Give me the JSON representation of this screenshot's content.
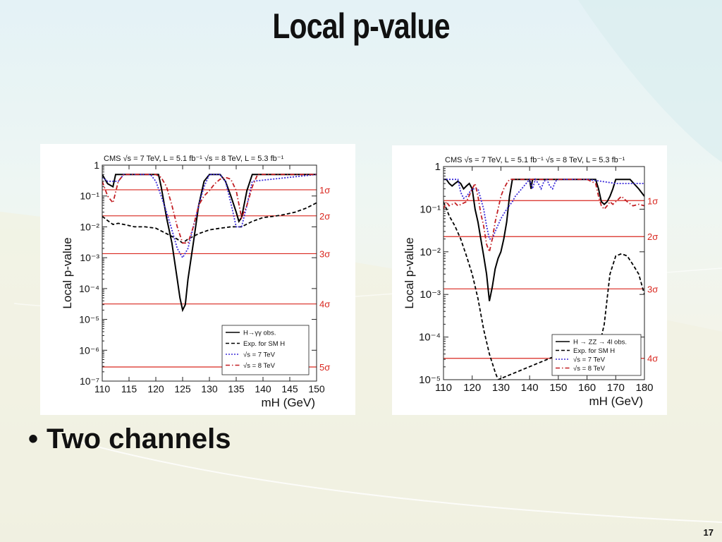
{
  "slide": {
    "title": "Local p-value",
    "bullet": "Two channels",
    "bullet_marker": "•",
    "page_number": "17"
  },
  "colors": {
    "observed": "#000000",
    "expected": "#000000",
    "sqrt_s_7tev": "#3b2bd9",
    "sqrt_s_8tev": "#c21f24",
    "sigma_lines": "#d9271f"
  },
  "chart_data": [
    {
      "type": "line",
      "header": "CMS  √s = 7 TeV, L = 5.1 fb⁻¹  √s = 8 TeV, L = 5.3 fb⁻¹",
      "xlabel": "m_H (GeV)",
      "ylabel": "Local p-value",
      "xlim": [
        110,
        150
      ],
      "ylim_log10": [
        -7,
        0
      ],
      "y_scale": "log",
      "x_ticks": [
        110,
        115,
        120,
        125,
        130,
        135,
        140,
        145,
        150
      ],
      "y_ticks": [
        "1",
        "10⁻¹",
        "10⁻²",
        "10⁻³",
        "10⁻⁴",
        "10⁻⁵",
        "10⁻⁶",
        "10⁻⁷"
      ],
      "sigma_levels": [
        {
          "label": "1σ",
          "p": 0.1587
        },
        {
          "label": "2σ",
          "p": 0.02275
        },
        {
          "label": "3σ",
          "p": 0.00135
        },
        {
          "label": "4σ",
          "p": 3.17e-05
        },
        {
          "label": "5σ",
          "p": 2.87e-07
        }
      ],
      "legend_position": "bottom-right",
      "series": [
        {
          "name": "H→γγ obs.",
          "style": "solid",
          "color_key": "observed",
          "x": [
            110,
            111,
            112,
            112.5,
            113,
            114,
            117,
            118,
            120,
            120.5,
            121,
            122,
            123,
            124,
            124.5,
            125,
            125.5,
            126,
            127,
            128,
            129,
            130,
            131,
            132,
            133,
            134,
            135,
            135.5,
            136,
            137,
            138,
            150
          ],
          "y": [
            0.5,
            0.25,
            0.2,
            0.5,
            0.5,
            0.5,
            0.5,
            0.5,
            0.5,
            0.5,
            0.2,
            0.02,
            0.003,
            0.0002,
            5e-05,
            2e-05,
            3e-05,
            0.0002,
            0.003,
            0.05,
            0.3,
            0.5,
            0.5,
            0.5,
            0.3,
            0.1,
            0.03,
            0.015,
            0.02,
            0.15,
            0.5,
            0.5
          ]
        },
        {
          "name": "Exp. for SM H",
          "style": "dashed",
          "color_key": "expected",
          "x": [
            110,
            111,
            112,
            113,
            114,
            116,
            118,
            120,
            122,
            124,
            125,
            126,
            128,
            130,
            132,
            134,
            136,
            138,
            140,
            142,
            144,
            146,
            148,
            150
          ],
          "y": [
            0.022,
            0.016,
            0.012,
            0.013,
            0.012,
            0.01,
            0.01,
            0.009,
            0.006,
            0.004,
            0.003,
            0.004,
            0.006,
            0.008,
            0.009,
            0.01,
            0.01,
            0.015,
            0.02,
            0.022,
            0.025,
            0.03,
            0.04,
            0.06
          ]
        },
        {
          "name": "√s = 7 TeV",
          "style": "dotted",
          "color_key": "sqrt_s_7tev",
          "x": [
            110,
            111,
            113,
            114,
            118,
            119,
            120,
            121,
            122,
            123,
            124,
            125,
            126,
            127,
            128,
            129,
            130,
            131,
            132,
            133,
            134,
            135,
            136,
            137,
            138,
            150
          ],
          "y": [
            0.4,
            0.3,
            0.3,
            0.5,
            0.5,
            0.5,
            0.3,
            0.1,
            0.03,
            0.008,
            0.002,
            0.001,
            0.002,
            0.01,
            0.05,
            0.2,
            0.5,
            0.5,
            0.5,
            0.3,
            0.06,
            0.01,
            0.01,
            0.05,
            0.3,
            0.5
          ]
        },
        {
          "name": "√s = 8 TeV",
          "style": "dashdot",
          "color_key": "sqrt_s_8tev",
          "x": [
            110,
            111,
            112,
            113,
            114,
            120,
            121,
            122,
            123,
            124,
            125,
            126,
            127,
            128,
            129,
            130,
            131,
            132,
            133,
            134,
            135,
            136,
            137,
            138,
            139,
            150
          ],
          "y": [
            0.3,
            0.1,
            0.06,
            0.3,
            0.5,
            0.5,
            0.4,
            0.2,
            0.05,
            0.01,
            0.003,
            0.003,
            0.01,
            0.05,
            0.1,
            0.15,
            0.25,
            0.35,
            0.4,
            0.35,
            0.15,
            0.02,
            0.05,
            0.2,
            0.5,
            0.5
          ]
        }
      ]
    },
    {
      "type": "line",
      "header": "CMS  √s = 7 TeV, L = 5.1 fb⁻¹  √s = 8 TeV, L = 5.3 fb⁻¹",
      "xlabel": "m_H (GeV)",
      "ylabel": "Local p-value",
      "xlim": [
        110,
        180
      ],
      "ylim_log10": [
        -5,
        0
      ],
      "y_scale": "log",
      "x_ticks": [
        110,
        120,
        130,
        140,
        150,
        160,
        170,
        180
      ],
      "y_ticks": [
        "1",
        "10⁻¹",
        "10⁻²",
        "10⁻³",
        "10⁻⁴",
        "10⁻⁵"
      ],
      "sigma_levels": [
        {
          "label": "1σ",
          "p": 0.1587
        },
        {
          "label": "2σ",
          "p": 0.02275
        },
        {
          "label": "3σ",
          "p": 0.00135
        },
        {
          "label": "4σ",
          "p": 3.17e-05
        }
      ],
      "legend_position": "bottom-right",
      "series": [
        {
          "name": "H → ZZ → 4l obs.",
          "style": "solid",
          "color_key": "observed",
          "x": [
            110,
            111,
            112,
            113,
            114,
            115,
            116,
            117,
            118,
            119,
            120,
            121,
            122,
            123,
            124,
            125,
            126,
            127,
            128,
            129,
            130,
            131,
            132,
            133,
            134,
            135,
            139,
            140,
            140.5,
            141,
            145,
            160,
            163,
            164,
            165,
            166,
            167,
            168,
            169,
            170,
            171,
            175,
            178,
            180
          ],
          "y": [
            0.5,
            0.5,
            0.4,
            0.35,
            0.4,
            0.45,
            0.4,
            0.3,
            0.35,
            0.4,
            0.3,
            0.1,
            0.05,
            0.02,
            0.008,
            0.003,
            0.0007,
            0.0015,
            0.004,
            0.007,
            0.01,
            0.02,
            0.05,
            0.2,
            0.5,
            0.5,
            0.5,
            0.5,
            0.3,
            0.5,
            0.5,
            0.5,
            0.5,
            0.3,
            0.15,
            0.13,
            0.15,
            0.2,
            0.3,
            0.5,
            0.5,
            0.5,
            0.3,
            0.2
          ]
        },
        {
          "name": "Exp. for SM H",
          "style": "dashed",
          "color_key": "expected",
          "x": [
            110,
            112,
            114,
            116,
            118,
            120,
            122,
            124,
            126,
            128,
            129,
            165,
            166,
            167,
            168,
            170,
            172,
            174,
            176,
            178,
            180
          ],
          "y": [
            0.15,
            0.07,
            0.04,
            0.02,
            0.008,
            0.003,
            0.0008,
            0.00015,
            4e-05,
            1.5e-05,
            1e-05,
            0.0001,
            0.0002,
            0.0008,
            0.003,
            0.008,
            0.009,
            0.008,
            0.005,
            0.003,
            0.001
          ]
        },
        {
          "name": "√s = 7 TeV",
          "style": "dotted",
          "color_key": "sqrt_s_7tev",
          "x": [
            110,
            114,
            115,
            116,
            117,
            118,
            120,
            122,
            124,
            125,
            126,
            127,
            128,
            130,
            132,
            134,
            135,
            140,
            141,
            142,
            143,
            144,
            145,
            146,
            147,
            148,
            149,
            150,
            155,
            160,
            165,
            170,
            180
          ],
          "y": [
            0.5,
            0.5,
            0.5,
            0.25,
            0.18,
            0.2,
            0.3,
            0.3,
            0.1,
            0.04,
            0.02,
            0.02,
            0.03,
            0.06,
            0.1,
            0.15,
            0.2,
            0.5,
            0.3,
            0.5,
            0.4,
            0.3,
            0.45,
            0.5,
            0.35,
            0.3,
            0.45,
            0.5,
            0.5,
            0.5,
            0.45,
            0.4,
            0.4
          ]
        },
        {
          "name": "√s = 8 TeV",
          "style": "dashdot",
          "color_key": "sqrt_s_8tev",
          "x": [
            110,
            111,
            112,
            113,
            114,
            115,
            118,
            120,
            121,
            122,
            123,
            124,
            125,
            126,
            127,
            128,
            129,
            130,
            131,
            132,
            133,
            134,
            135,
            140,
            160,
            163,
            164,
            165,
            166,
            167,
            168,
            169,
            170,
            172,
            174,
            176,
            178,
            180
          ],
          "y": [
            0.1,
            0.15,
            0.12,
            0.13,
            0.14,
            0.12,
            0.15,
            0.3,
            0.4,
            0.2,
            0.08,
            0.04,
            0.015,
            0.01,
            0.02,
            0.05,
            0.1,
            0.2,
            0.3,
            0.4,
            0.5,
            0.5,
            0.5,
            0.5,
            0.5,
            0.4,
            0.2,
            0.12,
            0.1,
            0.12,
            0.15,
            0.13,
            0.15,
            0.2,
            0.15,
            0.12,
            0.13,
            0.12
          ]
        }
      ]
    }
  ]
}
